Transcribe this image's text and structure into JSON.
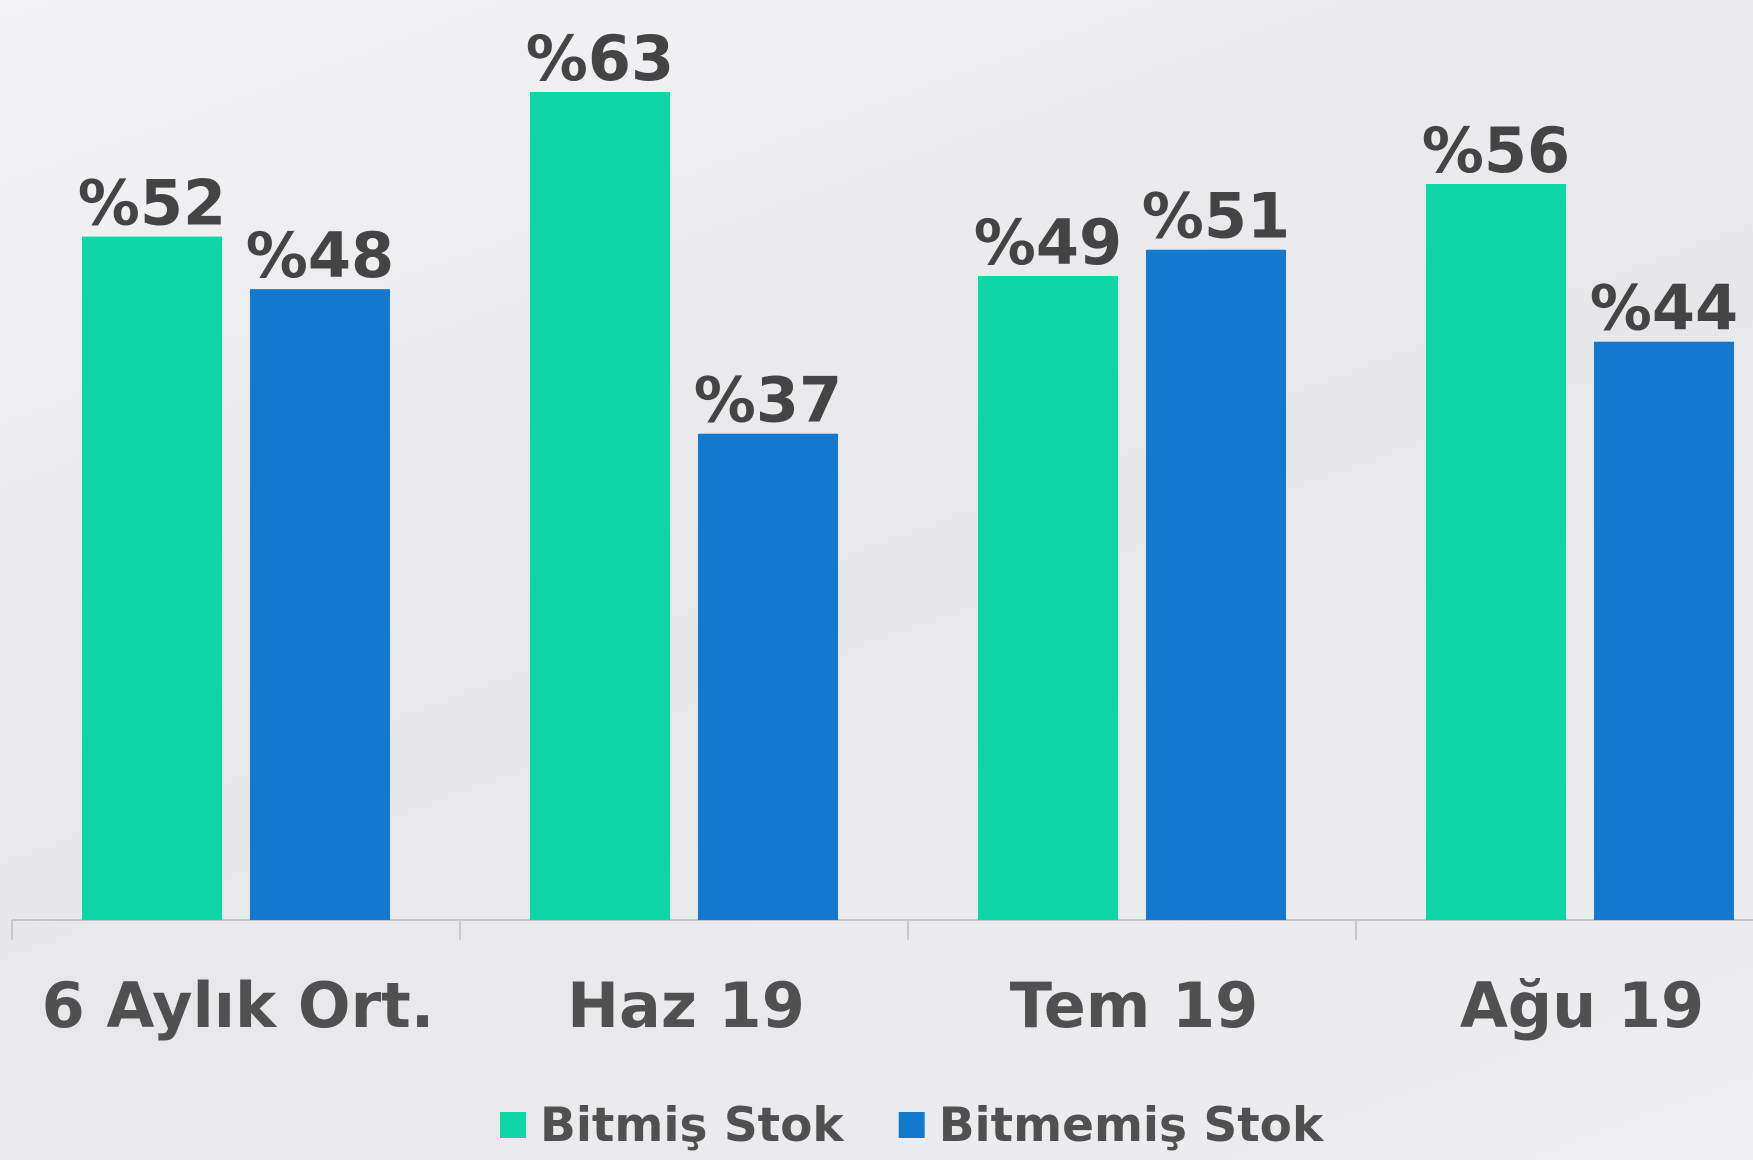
{
  "chart_data": {
    "type": "bar",
    "categories": [
      "6 Aylık Ort.",
      "Haz 19",
      "Tem 19",
      "Ağu 19"
    ],
    "series": [
      {
        "name": "Bitmiş Stok",
        "color": "#0fd6a5",
        "values": [
          52,
          63,
          49,
          56
        ],
        "value_labels": [
          "%52",
          "%63",
          "%49",
          "%56"
        ]
      },
      {
        "name": "Bitmemiş Stok",
        "color": "#1279cf",
        "values": [
          48,
          37,
          51,
          44
        ],
        "value_labels": [
          "%48",
          "%37",
          "%51",
          "%44"
        ]
      }
    ],
    "ylim": [
      0,
      70
    ],
    "legend": "bottom"
  }
}
